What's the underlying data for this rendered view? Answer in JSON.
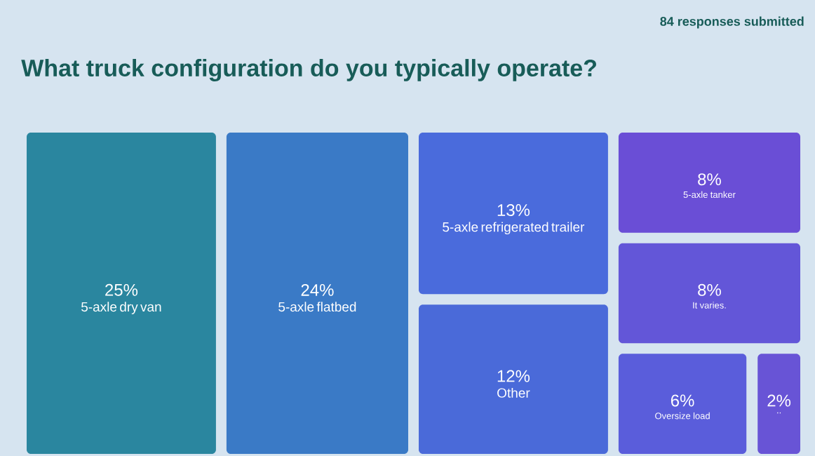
{
  "chart_data": {
    "type": "other",
    "title": "What truck configuration do you typically operate?",
    "annotations": [
      "84 responses submitted"
    ],
    "categories": [
      "5-axle dry van",
      "5-axle flatbed",
      "5-axle refrigerated trailer",
      "Other",
      "5-axle tanker",
      "It varies.",
      "Oversize load",
      ".."
    ],
    "values": [
      25,
      24,
      13,
      12,
      8,
      8,
      6,
      2
    ],
    "value_labels": [
      "25%",
      "24%",
      "13%",
      "12%",
      "8%",
      "8%",
      "6%",
      "2%"
    ],
    "data_labels": true,
    "colors": [
      "#2a869f",
      "#3a7ac6",
      "#4a6bdc",
      "#4a6ad9",
      "#6a4ed6",
      "#6356d8",
      "#5a5ddb",
      "#6854d6"
    ]
  }
}
